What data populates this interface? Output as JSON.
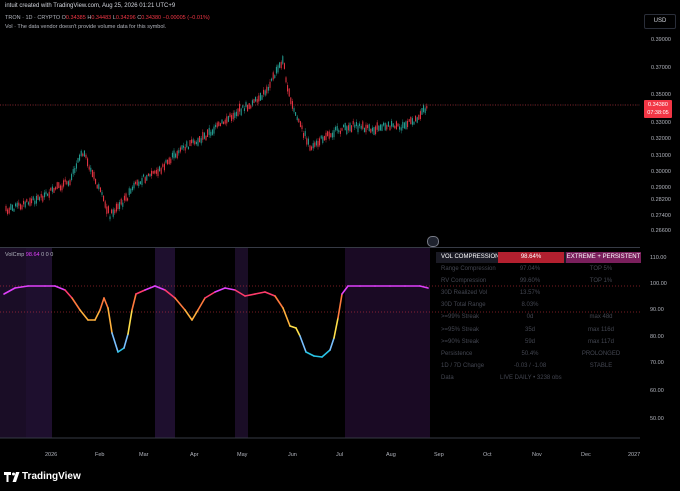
{
  "header": {
    "created": "intuit created with TradingView.com, Aug 25, 2026 01:21 UTC+9",
    "symbol": "TRON · 1D · CRYPTO",
    "o_key": "O",
    "o_val": "0.34385",
    "h_key": "H",
    "h_val": "0.34483",
    "l_key": "L",
    "l_val": "0.34296",
    "c_key": "C",
    "c_val": "0.34380",
    "chg": "−0.00005 (−0.01%)",
    "vol_note": "Vol · The data vendor doesn't provide volume data for this symbol."
  },
  "currency": "USD",
  "price_axis": [
    "0.39000",
    "0.37000",
    "0.35000",
    "0.33000",
    "0.32000",
    "0.31000",
    "0.30000",
    "0.29000",
    "0.28200",
    "0.27400",
    "0.26600"
  ],
  "last_price": {
    "price": "0.34380",
    "timer": "07:38:05"
  },
  "indicator": {
    "name": "VolCmp",
    "value": "98.64",
    "dots": "0  0  0"
  },
  "ind_axis": [
    "110.00",
    "100.00",
    "90.00",
    "80.00",
    "70.00",
    "60.00",
    "50.00"
  ],
  "x_axis": [
    "2026",
    "Feb",
    "Mar",
    "Apr",
    "May",
    "Jun",
    "Jul",
    "Aug",
    "Sep",
    "Oct",
    "Nov",
    "Dec",
    "2027"
  ],
  "table": {
    "header": [
      "VOL COMPRESSION",
      "98.64%",
      "EXTREME + PERSISTENT"
    ],
    "rows": [
      [
        "Range Compression",
        "97.04%",
        "TOP 5%"
      ],
      [
        "RV Compression",
        "99.60%",
        "TOP 1%"
      ],
      [
        "30D Realized Vol",
        "13.57%",
        ""
      ],
      [
        "30D Total Range",
        "8.03%",
        ""
      ],
      [
        ">=99% Streak",
        "0d",
        "max 48d"
      ],
      [
        ">=95% Streak",
        "35d",
        "max 116d"
      ],
      [
        ">=90% Streak",
        "59d",
        "max 117d"
      ],
      [
        "Persistence",
        "50.4%",
        "PROLONGED"
      ],
      [
        "1D / 7D Change",
        "-0.03 / -1.08",
        "STABLE"
      ],
      [
        "Data",
        "LIVE DAILY • 3238 obs",
        ""
      ]
    ]
  },
  "brand": "TradingView",
  "colors": {
    "up": "#26a69a",
    "down": "#f23645",
    "accent": "#e040fb",
    "panel": "#1a1a24"
  }
}
